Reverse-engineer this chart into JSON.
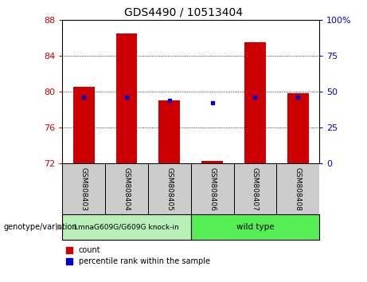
{
  "title": "GDS4490 / 10513404",
  "samples": [
    "GSM808403",
    "GSM808404",
    "GSM808405",
    "GSM808406",
    "GSM808407",
    "GSM808408"
  ],
  "bar_bottoms": [
    72,
    72,
    72,
    72,
    72,
    72
  ],
  "bar_tops": [
    80.5,
    86.5,
    79.0,
    72.3,
    85.5,
    79.8
  ],
  "blue_dot_y": [
    79.4,
    79.4,
    79.0,
    78.8,
    79.4,
    79.4
  ],
  "ylim_left": [
    72,
    88
  ],
  "ylim_right": [
    0,
    100
  ],
  "yticks_left": [
    72,
    76,
    80,
    84,
    88
  ],
  "yticks_right": [
    0,
    25,
    50,
    75,
    100
  ],
  "ytick_labels_right": [
    "0",
    "25",
    "50",
    "75",
    "100%"
  ],
  "left_tick_color": "#cc0000",
  "right_tick_color": "#0000cc",
  "bar_color": "#cc0000",
  "dot_color": "#0000cc",
  "group_names": [
    "LmnaG609G/G609G knock-in",
    "wild type"
  ],
  "group_color_left": "#b8f0b8",
  "group_color_right": "#55ee55",
  "sample_bg": "#cccccc",
  "xlabel_label": "genotype/variation",
  "bar_width": 0.5,
  "legend_count_color": "#cc0000",
  "legend_pct_color": "#0000cc"
}
